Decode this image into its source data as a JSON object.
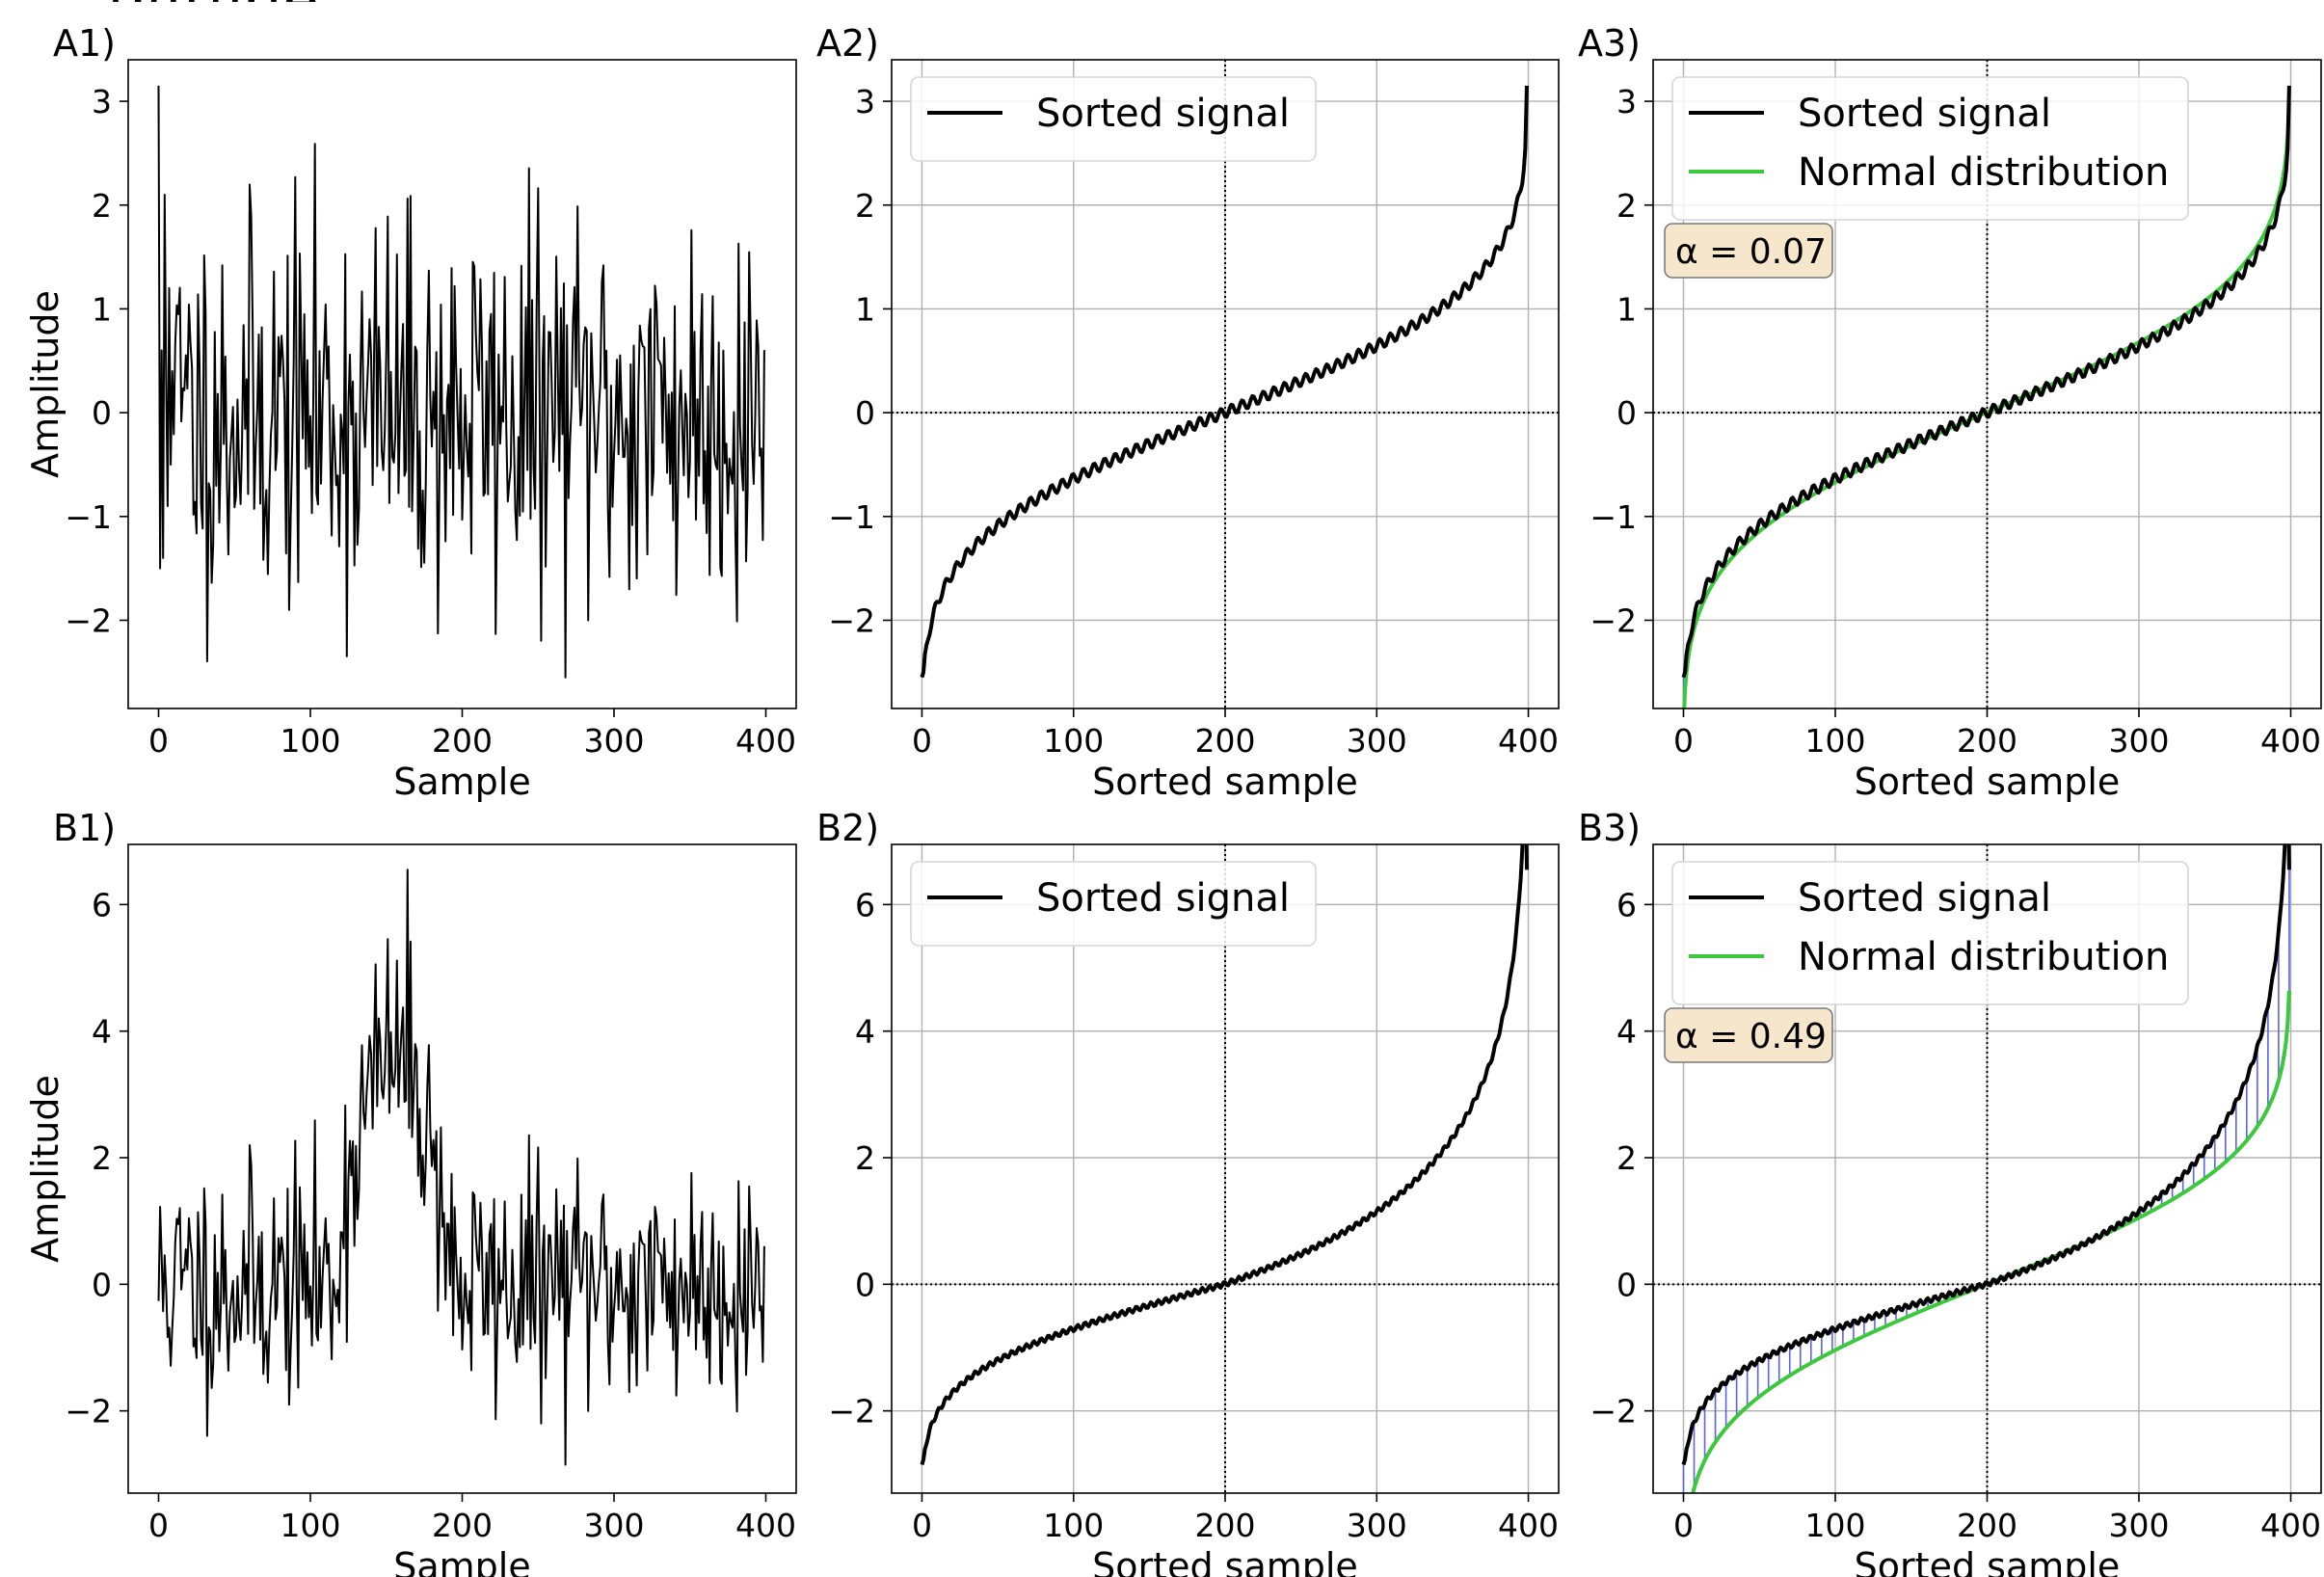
{
  "page_caption": "plitude",
  "chart_data": [
    {
      "id": "A1",
      "label": "A1)",
      "type": "line",
      "xlabel": "Sample",
      "ylabel": "Amplitude",
      "xlim": [
        -20,
        420
      ],
      "ylim": [
        -2.85,
        3.4
      ],
      "xticks": [
        0,
        100,
        200,
        300,
        400
      ],
      "yticks": [
        -2,
        -1,
        0,
        1,
        2,
        3
      ],
      "grid": false,
      "series": [
        {
          "kind": "signal",
          "generator": "noise",
          "seed": 11,
          "n": 400,
          "y": [
            3.15,
            -1.5,
            0.6,
            -1.4,
            2.1,
            0.3,
            -0.9,
            1.2,
            -0.5,
            0.4
          ],
          "y_min": -2.55,
          "y_max": 3.15,
          "color": "#000000"
        }
      ]
    },
    {
      "id": "A2",
      "label": "A2)",
      "type": "line",
      "xlabel": "Sorted sample",
      "ylabel": "",
      "xlim": [
        -20,
        420
      ],
      "ylim": [
        -2.85,
        3.4
      ],
      "xticks": [
        0,
        100,
        200,
        300,
        400
      ],
      "yticks": [
        -2,
        -1,
        0,
        1,
        2,
        3
      ],
      "grid": true,
      "legend": "top-left",
      "reference_lines": {
        "x": 200,
        "y": 0
      },
      "series": [
        {
          "name": "Sorted signal",
          "kind": "sorted",
          "n": 400,
          "y_range": [
            -2.55,
            3.15
          ],
          "color": "#000000"
        }
      ]
    },
    {
      "id": "A3",
      "label": "A3)",
      "type": "line",
      "xlabel": "Sorted sample",
      "ylabel": "",
      "xlim": [
        -20,
        420
      ],
      "ylim": [
        -2.85,
        3.4
      ],
      "xticks": [
        0,
        100,
        200,
        300,
        400
      ],
      "yticks": [
        -2,
        -1,
        0,
        1,
        2,
        3
      ],
      "grid": true,
      "legend": "top-left",
      "reference_lines": {
        "x": 200,
        "y": 0
      },
      "annotation": "α = 0.07",
      "hatch_color": "#5b63e6",
      "series": [
        {
          "name": "Sorted signal",
          "kind": "sorted",
          "n": 400,
          "y_range": [
            -2.55,
            3.15
          ],
          "color": "#000000"
        },
        {
          "name": "Normal distribution",
          "kind": "normal",
          "n": 400,
          "scale": 1.0,
          "color": "#3cc83c"
        }
      ]
    },
    {
      "id": "B1",
      "label": "B1)",
      "type": "line",
      "xlabel": "Sample",
      "ylabel": "Amplitude",
      "xlim": [
        -20,
        420
      ],
      "ylim": [
        -3.3,
        6.95
      ],
      "xticks": [
        0,
        100,
        200,
        300,
        400
      ],
      "yticks": [
        -2,
        0,
        2,
        4,
        6
      ],
      "grid": false,
      "series": [
        {
          "kind": "signal",
          "generator": "noise_bump",
          "seed": 11,
          "n": 400,
          "bump_center": 155,
          "bump_halfwidth": 40,
          "bump_height": 3.6,
          "y_min": -2.85,
          "y_max": 6.55,
          "color": "#000000"
        }
      ]
    },
    {
      "id": "B2",
      "label": "B2)",
      "type": "line",
      "xlabel": "Sorted sample",
      "ylabel": "",
      "xlim": [
        -20,
        420
      ],
      "ylim": [
        -3.3,
        6.95
      ],
      "xticks": [
        0,
        100,
        200,
        300,
        400
      ],
      "yticks": [
        -2,
        0,
        2,
        4,
        6
      ],
      "grid": true,
      "legend": "top-left",
      "reference_lines": {
        "x": 200,
        "y": 0
      },
      "series": [
        {
          "name": "Sorted signal",
          "kind": "sorted_skew",
          "n": 400,
          "y_range": [
            -2.85,
            6.55
          ],
          "color": "#000000"
        }
      ]
    },
    {
      "id": "B3",
      "label": "B3)",
      "type": "line",
      "xlabel": "Sorted sample",
      "ylabel": "",
      "xlim": [
        -20,
        420
      ],
      "ylim": [
        -3.3,
        6.95
      ],
      "xticks": [
        0,
        100,
        200,
        300,
        400
      ],
      "yticks": [
        -2,
        0,
        2,
        4,
        6
      ],
      "grid": true,
      "legend": "top-left",
      "reference_lines": {
        "x": 200,
        "y": 0
      },
      "annotation": "α = 0.49",
      "hatch_color": "#5b63e6",
      "series": [
        {
          "name": "Sorted signal",
          "kind": "sorted_skew",
          "n": 400,
          "y_range": [
            -2.85,
            6.55
          ],
          "color": "#000000"
        },
        {
          "name": "Normal distribution",
          "kind": "normal",
          "n": 400,
          "scale": 1.55,
          "color": "#3cc83c"
        }
      ]
    }
  ]
}
